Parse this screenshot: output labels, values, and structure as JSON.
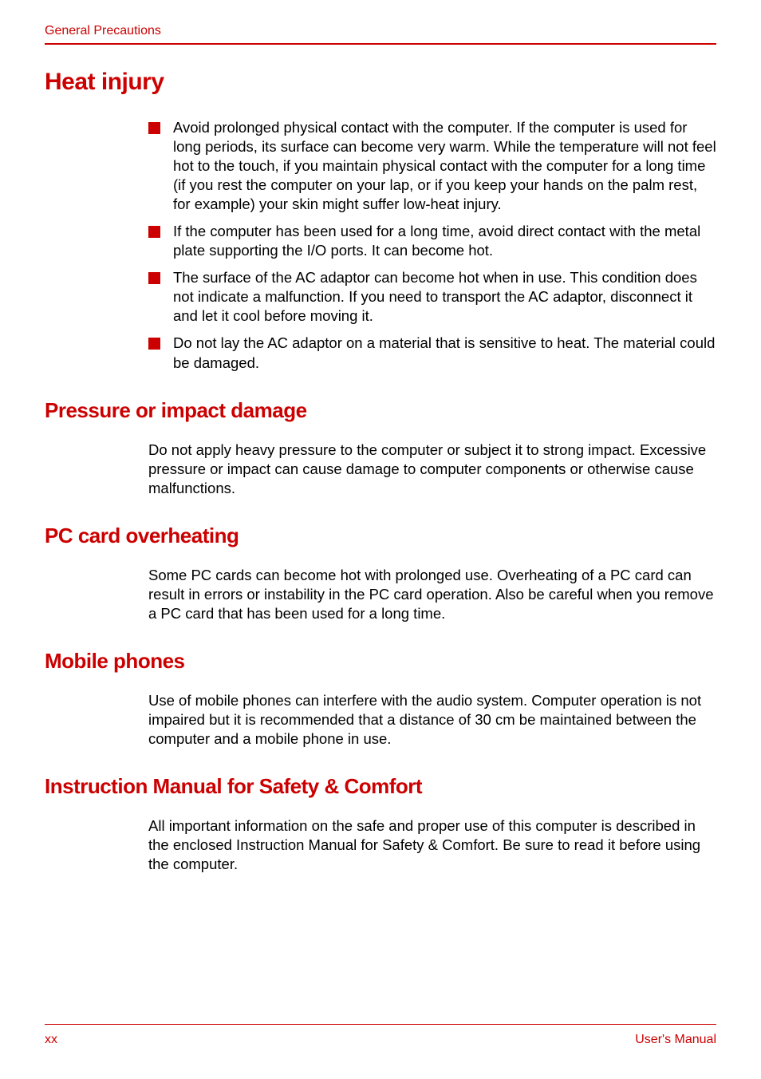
{
  "colors": {
    "accent": "#cc0000",
    "text": "#000000",
    "background": "#ffffff"
  },
  "typography": {
    "body_fontsize": 18.5,
    "h1_fontsize": 30,
    "h2_fontsize": 26,
    "header_fontsize": 16,
    "footer_fontsize": 16,
    "font_family": "Arial"
  },
  "header": {
    "section": "General Precautions"
  },
  "sections": [
    {
      "title": "Heat injury",
      "level": "h1",
      "bullets": [
        "Avoid prolonged physical contact with the computer. If the computer is used for long periods, its surface can become very warm. While the temperature will not feel hot to the touch, if you maintain physical contact with the computer for a long time (if you rest the computer on your lap, or if you keep your hands on the palm rest, for example) your skin might suffer low-heat injury.",
        "If the computer has been used for a long time, avoid direct contact with the metal plate supporting the I/O ports. It can become hot.",
        "The surface of the AC adaptor can become hot when in use. This condition does not indicate a malfunction. If you need to transport the AC adaptor, disconnect it and let it cool before moving it.",
        "Do not lay the AC adaptor on a material that is sensitive to heat. The material could be damaged."
      ]
    },
    {
      "title": "Pressure or impact damage",
      "level": "h2",
      "body": "Do not apply heavy pressure to the computer or subject it to strong impact. Excessive pressure or impact can cause damage to computer components or otherwise cause malfunctions."
    },
    {
      "title": "PC card overheating",
      "level": "h2",
      "body": "Some PC cards can become hot with prolonged use. Overheating of a PC card can result in errors or instability in the PC card operation. Also be careful when you remove a PC card that has been used for a long time."
    },
    {
      "title": "Mobile phones",
      "level": "h2",
      "body": "Use of mobile phones can interfere with the audio system. Computer operation is not impaired but it is recommended that a distance of 30 cm be maintained between the computer and a mobile phone in use."
    },
    {
      "title": "Instruction Manual for Safety & Comfort",
      "level": "h2",
      "body": "All important information on the safe and proper use of this computer is described in the enclosed Instruction Manual for Safety & Comfort. Be sure to read it before using the computer."
    }
  ],
  "footer": {
    "page": "xx",
    "doc": "User's Manual"
  }
}
